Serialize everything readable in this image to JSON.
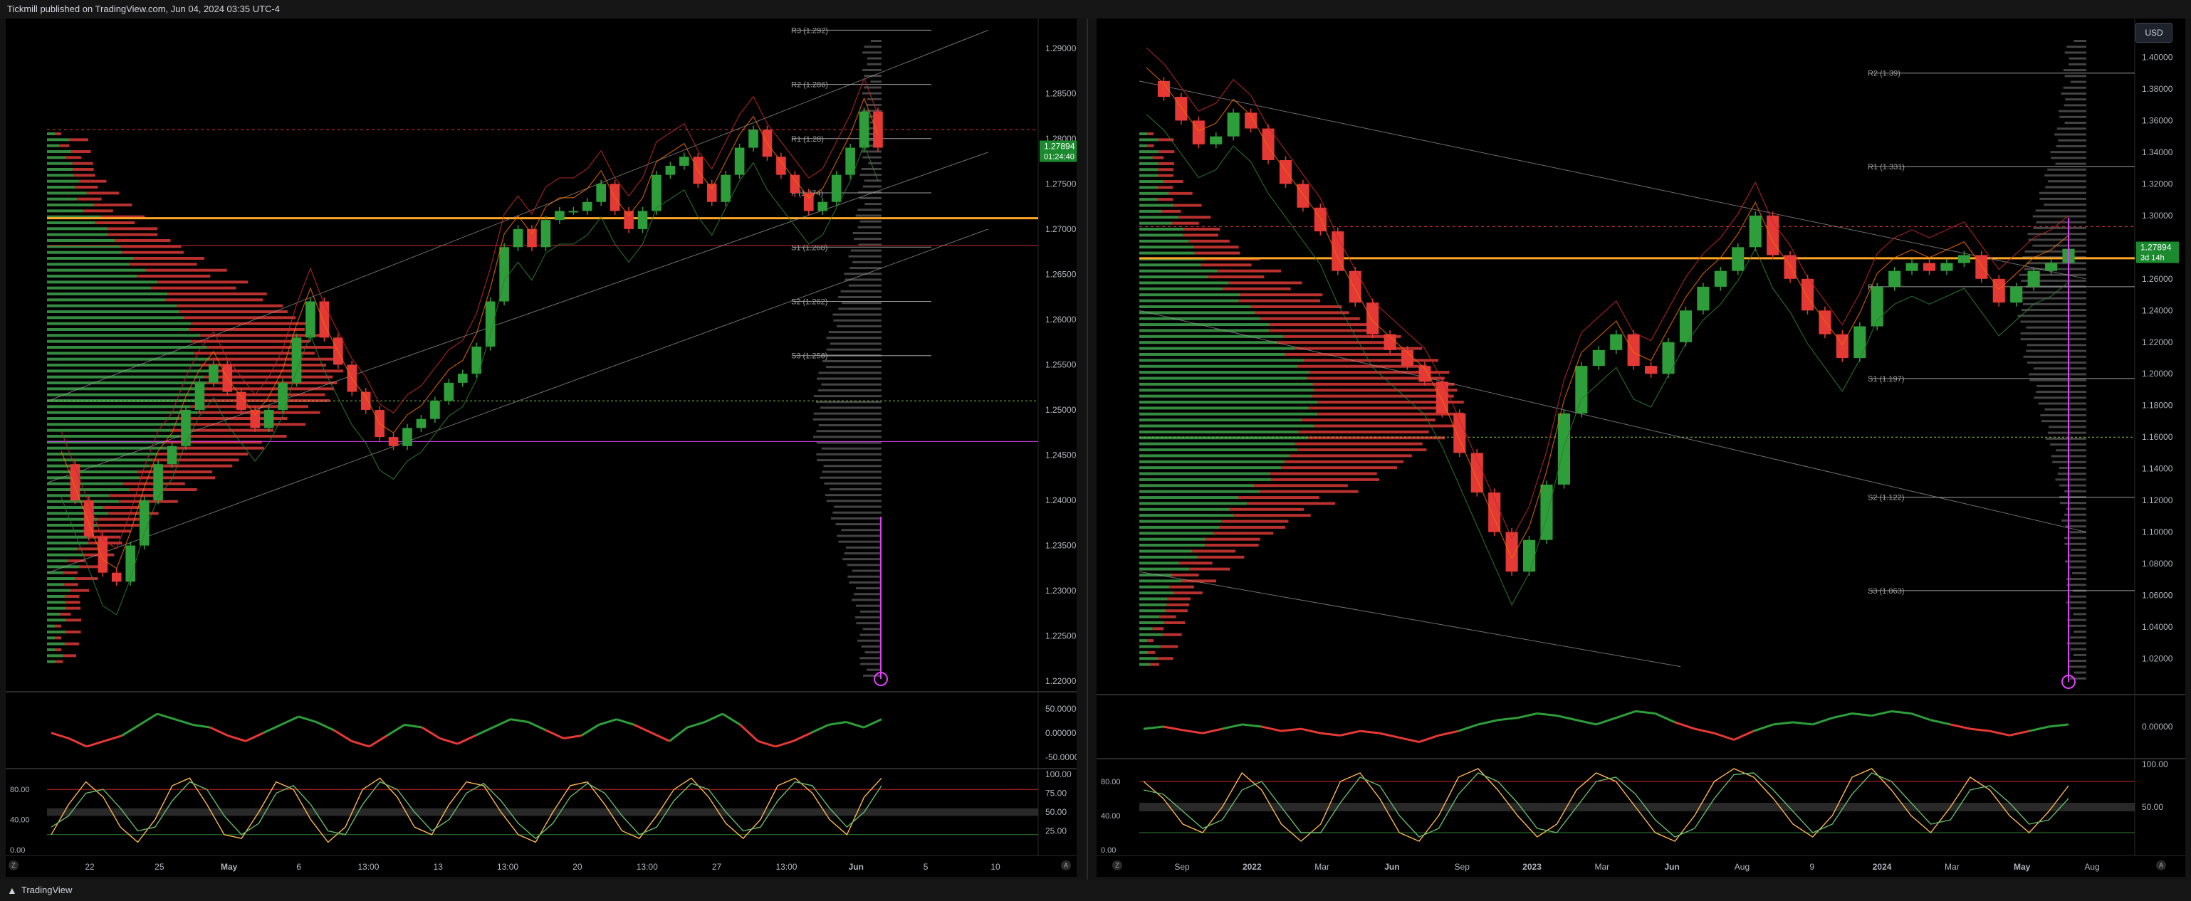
{
  "header": {
    "publisher_line": "Tickmill published on TradingView.com, Jun 04, 2024 03:35 UTC-4"
  },
  "footer": {
    "brand": "TradingView"
  },
  "currency_button": "USD",
  "axis_buttons": {
    "zoom": "Z",
    "auto": "A"
  },
  "colors": {
    "up": "#2e9e3a",
    "down": "#e53935",
    "accent_orange": "#ffa726",
    "price_badge": "#1b8a2f",
    "rsi_magenta": "#e040fb"
  },
  "chart_data": [
    {
      "type": "line",
      "id": "left-main",
      "instrument_price_badge": "1.27894",
      "countdown_badge": "01:24:40",
      "ylim": [
        1.2193,
        1.2925
      ],
      "y_ticks": [
        "1.29000",
        "1.28500",
        "1.28000",
        "1.27500",
        "1.27000",
        "1.26500",
        "1.26000",
        "1.25500",
        "1.25000",
        "1.24500",
        "1.24000",
        "1.23500",
        "1.23000",
        "1.22500",
        "1.22000"
      ],
      "x_ticks": [
        "22",
        "25",
        "May",
        "6",
        "13:00",
        "13",
        "13:00",
        "20",
        "13:00",
        "27",
        "13:00",
        "Jun",
        "5",
        "10"
      ],
      "pivots": [
        {
          "label": "R3 (1.292)",
          "value": 1.292
        },
        {
          "label": "R2 (1.286)",
          "value": 1.286
        },
        {
          "label": "R1 (1.28)",
          "value": 1.28
        },
        {
          "label": "P (1.274)",
          "value": 1.274
        },
        {
          "label": "S1 (1.268)",
          "value": 1.268
        },
        {
          "label": "S2 (1.262)",
          "value": 1.262
        },
        {
          "label": "S3 (1.256)",
          "value": 1.256
        }
      ],
      "price_path": [
        1.244,
        1.24,
        1.236,
        1.232,
        1.231,
        1.235,
        1.24,
        1.244,
        1.246,
        1.25,
        1.253,
        1.255,
        1.252,
        1.25,
        1.248,
        1.25,
        1.253,
        1.258,
        1.262,
        1.258,
        1.255,
        1.252,
        1.25,
        1.247,
        1.246,
        1.248,
        1.249,
        1.251,
        1.253,
        1.254,
        1.257,
        1.262,
        1.268,
        1.27,
        1.268,
        1.271,
        1.272,
        1.272,
        1.273,
        1.275,
        1.272,
        1.27,
        1.272,
        1.276,
        1.277,
        1.278,
        1.275,
        1.273,
        1.276,
        1.279,
        1.281,
        1.278,
        1.276,
        1.274,
        1.272,
        1.273,
        1.276,
        1.279,
        1.283,
        1.279
      ]
    },
    {
      "type": "line",
      "id": "left-oscillator",
      "y_ticks": [
        "50.00000",
        "0.00000",
        "-50.00000"
      ],
      "values": [
        -5,
        -15,
        -30,
        -20,
        -10,
        10,
        30,
        20,
        10,
        5,
        -10,
        -20,
        -5,
        10,
        25,
        15,
        0,
        -20,
        -30,
        -10,
        10,
        5,
        -15,
        -25,
        -10,
        5,
        20,
        15,
        0,
        -15,
        -10,
        10,
        20,
        10,
        -5,
        -20,
        5,
        15,
        30,
        10,
        -20,
        -30,
        -20,
        -5,
        10,
        15,
        5,
        20
      ]
    },
    {
      "type": "line",
      "id": "left-stochastic",
      "y_ticks_left": [
        "80.00",
        "40.00",
        "0.00"
      ],
      "y_ticks_right": [
        "100.00",
        "75.00",
        "50.00",
        "25.00"
      ],
      "k": [
        20,
        60,
        90,
        70,
        30,
        10,
        40,
        85,
        95,
        60,
        20,
        15,
        50,
        90,
        80,
        40,
        10,
        30,
        80,
        95,
        70,
        30,
        20,
        60,
        90,
        85,
        50,
        20,
        10,
        50,
        85,
        90,
        60,
        25,
        15,
        45,
        80,
        95,
        70,
        35,
        15,
        40,
        85,
        95,
        75,
        40,
        20,
        70,
        95
      ],
      "d": [
        30,
        45,
        75,
        80,
        55,
        25,
        30,
        65,
        90,
        80,
        45,
        20,
        35,
        75,
        85,
        60,
        25,
        20,
        60,
        90,
        80,
        50,
        25,
        40,
        75,
        88,
        65,
        35,
        15,
        35,
        70,
        88,
        75,
        45,
        20,
        30,
        65,
        88,
        80,
        50,
        25,
        30,
        65,
        90,
        85,
        55,
        30,
        50,
        85
      ]
    },
    {
      "type": "line",
      "id": "right-main",
      "instrument_price_badge": "1.27894",
      "countdown_badge": "3d 14h",
      "ylim": [
        1.0,
        1.42
      ],
      "y_ticks": [
        "1.40000",
        "1.38000",
        "1.36000",
        "1.34000",
        "1.32000",
        "1.30000",
        "1.28000",
        "1.26000",
        "1.24000",
        "1.22000",
        "1.20000",
        "1.18000",
        "1.16000",
        "1.14000",
        "1.12000",
        "1.10000",
        "1.08000",
        "1.06000",
        "1.04000",
        "1.02000"
      ],
      "x_ticks": [
        "Sep",
        "2022",
        "Mar",
        "Jun",
        "Sep",
        "2023",
        "Mar",
        "Jun",
        "Aug",
        "9",
        "2024",
        "Mar",
        "May",
        "Aug"
      ],
      "pivots": [
        {
          "label": "R2 (1.39)",
          "value": 1.39
        },
        {
          "label": "R1 (1.331)",
          "value": 1.331
        },
        {
          "label": "P",
          "value": 1.255
        },
        {
          "label": "S1 (1.197)",
          "value": 1.197
        },
        {
          "label": "S2 (1.122)",
          "value": 1.122
        },
        {
          "label": "S3 (1.063)",
          "value": 1.063
        }
      ],
      "price_path": [
        1.385,
        1.375,
        1.36,
        1.345,
        1.35,
        1.365,
        1.355,
        1.335,
        1.32,
        1.305,
        1.29,
        1.265,
        1.245,
        1.225,
        1.215,
        1.205,
        1.195,
        1.175,
        1.15,
        1.125,
        1.1,
        1.075,
        1.095,
        1.13,
        1.175,
        1.205,
        1.215,
        1.225,
        1.205,
        1.2,
        1.22,
        1.24,
        1.255,
        1.265,
        1.28,
        1.3,
        1.275,
        1.26,
        1.24,
        1.225,
        1.21,
        1.23,
        1.255,
        1.265,
        1.27,
        1.265,
        1.27,
        1.275,
        1.26,
        1.245,
        1.255,
        1.265,
        1.27,
        1.279
      ]
    },
    {
      "type": "line",
      "id": "right-oscillator",
      "y_ticks": [
        "0.00000"
      ],
      "values": [
        -5,
        0,
        -8,
        -15,
        -5,
        5,
        0,
        -10,
        -5,
        -15,
        -20,
        -10,
        -15,
        -25,
        -35,
        -20,
        -10,
        5,
        15,
        20,
        30,
        25,
        15,
        5,
        20,
        35,
        30,
        10,
        -5,
        -15,
        -30,
        -10,
        5,
        10,
        5,
        20,
        30,
        25,
        35,
        30,
        15,
        5,
        -5,
        -10,
        -20,
        -10,
        0,
        5
      ]
    },
    {
      "type": "line",
      "id": "right-stochastic",
      "y_ticks_left": [
        "80.00",
        "40.00",
        "0.00"
      ],
      "y_ticks_right": [
        "100.00",
        "50.00"
      ],
      "k": [
        80,
        60,
        30,
        20,
        50,
        90,
        70,
        30,
        10,
        30,
        80,
        90,
        60,
        20,
        10,
        40,
        85,
        95,
        70,
        40,
        15,
        30,
        70,
        90,
        80,
        50,
        20,
        10,
        40,
        80,
        95,
        85,
        60,
        30,
        15,
        40,
        85,
        95,
        70,
        40,
        20,
        50,
        85,
        70,
        40,
        20,
        45,
        75
      ],
      "d": [
        70,
        65,
        45,
        25,
        35,
        70,
        80,
        50,
        20,
        20,
        55,
        85,
        75,
        40,
        15,
        25,
        65,
        90,
        80,
        55,
        25,
        20,
        50,
        80,
        85,
        65,
        35,
        15,
        25,
        60,
        88,
        90,
        70,
        45,
        20,
        30,
        65,
        90,
        80,
        55,
        30,
        35,
        70,
        75,
        55,
        30,
        35,
        60
      ]
    }
  ]
}
